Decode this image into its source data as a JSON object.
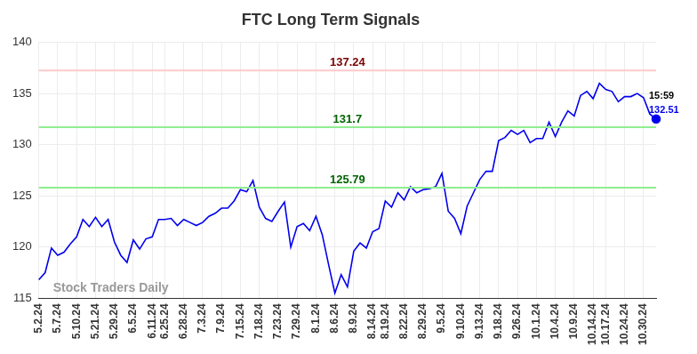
{
  "chart_data": {
    "type": "line",
    "title": "FTC Long Term Signals",
    "categories": [
      "5.2.24",
      null,
      null,
      "5.7.24",
      null,
      null,
      "5.10.24",
      null,
      null,
      "5.21.24",
      null,
      null,
      "5.29.24",
      null,
      null,
      "6.5.24",
      null,
      null,
      "6.11.24",
      null,
      "6.25.24",
      null,
      null,
      "6.28.24",
      null,
      null,
      "7.3.24",
      null,
      null,
      "7.9.24",
      null,
      null,
      "7.15.24",
      null,
      null,
      "7.18.24",
      null,
      null,
      "7.23.24",
      null,
      null,
      "7.29.24",
      null,
      null,
      "8.1.24",
      null,
      null,
      "8.6.24",
      null,
      null,
      "8.9.24",
      null,
      null,
      "8.14.24",
      null,
      "8.19.24",
      null,
      null,
      "8.22.24",
      null,
      null,
      "8.29.24",
      null,
      null,
      "9.5.24",
      null,
      null,
      "9.10.24",
      null,
      null,
      "9.13.24",
      null,
      null,
      "9.18.24",
      null,
      null,
      "9.26.24",
      null,
      null,
      "10.1.24",
      null,
      null,
      "10.4.24",
      null,
      null,
      "10.9.24",
      null,
      null,
      "10.14.24",
      null,
      "10.17.24",
      null,
      null,
      "10.24.24",
      null,
      null,
      "10.30.24",
      null,
      null
    ],
    "values": [
      116.8,
      117.5,
      119.9,
      119.2,
      119.5,
      120.3,
      121.0,
      122.7,
      122.0,
      122.9,
      122.0,
      122.7,
      120.5,
      119.2,
      118.5,
      120.7,
      119.8,
      120.8,
      121.0,
      122.7,
      122.7,
      122.8,
      122.1,
      122.7,
      122.4,
      122.1,
      122.4,
      123.0,
      123.3,
      123.8,
      123.8,
      124.5,
      125.6,
      125.4,
      126.5,
      123.9,
      122.8,
      122.5,
      123.5,
      124.4,
      120.0,
      122.0,
      122.3,
      121.6,
      123.0,
      121.2,
      118.3,
      115.5,
      117.3,
      116.1,
      119.6,
      120.4,
      119.9,
      121.5,
      121.8,
      124.5,
      123.9,
      125.3,
      124.6,
      125.9,
      125.3,
      125.6,
      125.7,
      125.9,
      127.2,
      123.5,
      122.8,
      121.3,
      124.0,
      125.3,
      126.6,
      127.4,
      127.4,
      130.4,
      130.7,
      131.4,
      131.0,
      131.4,
      130.2,
      130.6,
      130.6,
      132.2,
      130.8,
      132.2,
      133.3,
      132.8,
      134.8,
      135.2,
      134.5,
      136.0,
      135.4,
      135.2,
      134.2,
      134.7,
      134.7,
      135.0,
      134.6,
      133.0,
      132.51
    ],
    "color": "#0000ee",
    "ylim": [
      115,
      140
    ],
    "yticks": [
      115,
      120,
      125,
      130,
      135,
      140
    ],
    "grid": true,
    "annotations": [
      {
        "value": 137.24,
        "label": "137.24",
        "color": "#ffc9c9",
        "label_color": "#7a0000"
      },
      {
        "value": 131.7,
        "label": "131.7",
        "color": "#90ee90",
        "label_color": "#006400"
      },
      {
        "value": 125.79,
        "label": "125.79",
        "color": "#90ee90",
        "label_color": "#006400"
      }
    ],
    "last_point_label": "15:59",
    "watermark": "Stock Traders Daily"
  }
}
